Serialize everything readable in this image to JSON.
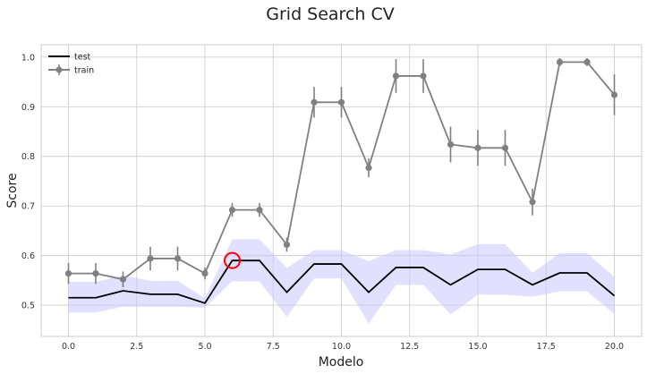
{
  "chart_data": {
    "type": "line",
    "title": "Grid Search CV",
    "xlabel": "Modelo",
    "ylabel": "Score",
    "xlim": [
      -1,
      21
    ],
    "ylim": [
      0.437,
      1.025
    ],
    "xticks": [
      0.0,
      2.5,
      5.0,
      7.5,
      10.0,
      12.5,
      15.0,
      17.5,
      20.0
    ],
    "xtick_labels": [
      "0.0",
      "2.5",
      "5.0",
      "7.5",
      "10.0",
      "12.5",
      "15.0",
      "17.5",
      "20.0"
    ],
    "yticks": [
      0.5,
      0.6,
      0.7,
      0.8,
      0.9,
      1.0
    ],
    "ytick_labels": [
      "0.5",
      "0.6",
      "0.7",
      "0.8",
      "0.9",
      "1.0"
    ],
    "grid": true,
    "legend_position": "top-left",
    "x": [
      0,
      1,
      2,
      3,
      4,
      5,
      6,
      7,
      8,
      9,
      10,
      11,
      12,
      13,
      14,
      15,
      16,
      17,
      18,
      19,
      20
    ],
    "series": [
      {
        "name": "test",
        "style": "line",
        "color": "#000000",
        "band_color": "#c9c9ff",
        "values": [
          0.515,
          0.515,
          0.529,
          0.522,
          0.522,
          0.504,
          0.59,
          0.59,
          0.526,
          0.583,
          0.583,
          0.526,
          0.576,
          0.576,
          0.541,
          0.572,
          0.572,
          0.541,
          0.565,
          0.565,
          0.519
        ],
        "band_lower": [
          0.485,
          0.485,
          0.497,
          0.497,
          0.497,
          0.495,
          0.548,
          0.548,
          0.476,
          0.554,
          0.554,
          0.463,
          0.541,
          0.541,
          0.481,
          0.521,
          0.521,
          0.517,
          0.528,
          0.528,
          0.482
        ],
        "band_upper": [
          0.547,
          0.547,
          0.56,
          0.549,
          0.549,
          0.514,
          0.633,
          0.633,
          0.575,
          0.611,
          0.611,
          0.589,
          0.611,
          0.611,
          0.602,
          0.623,
          0.623,
          0.565,
          0.605,
          0.605,
          0.557
        ]
      },
      {
        "name": "train",
        "style": "errorbar",
        "color": "#808080",
        "values": [
          0.564,
          0.564,
          0.552,
          0.594,
          0.594,
          0.564,
          0.692,
          0.692,
          0.622,
          0.909,
          0.909,
          0.777,
          0.962,
          0.962,
          0.824,
          0.817,
          0.817,
          0.708,
          0.99,
          0.99,
          0.924
        ],
        "errors": [
          0.021,
          0.021,
          0.016,
          0.024,
          0.024,
          0.012,
          0.014,
          0.014,
          0.014,
          0.031,
          0.031,
          0.019,
          0.034,
          0.034,
          0.036,
          0.036,
          0.036,
          0.027,
          0.008,
          0.008,
          0.041
        ]
      }
    ],
    "highlight": {
      "x": 6,
      "y": 0.59,
      "color": "#ff0000"
    }
  }
}
